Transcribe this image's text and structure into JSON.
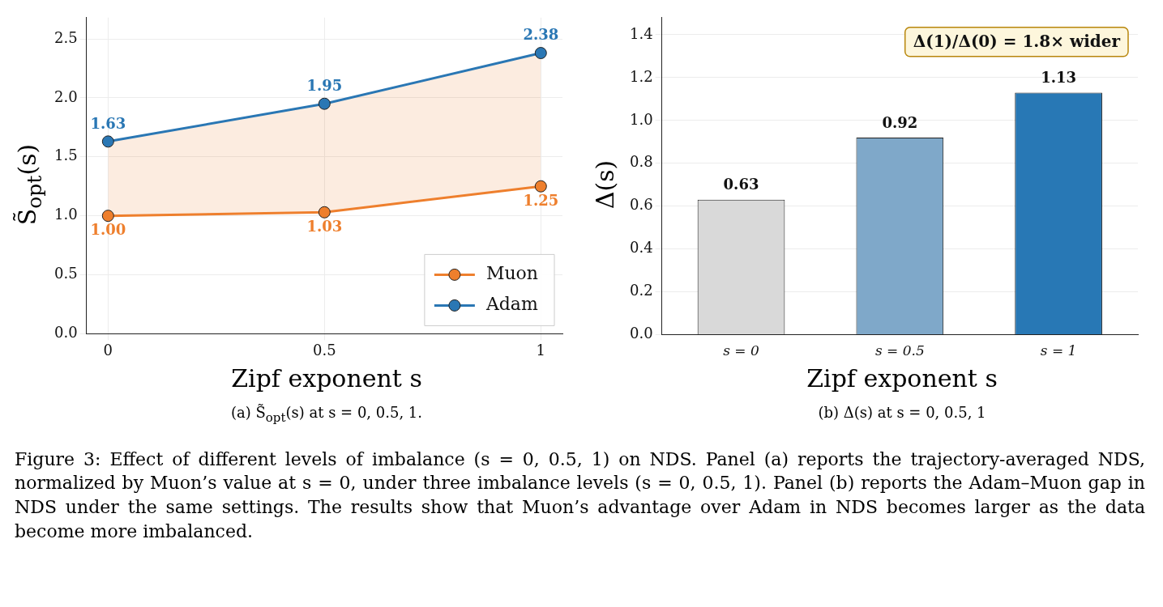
{
  "chart_data": [
    {
      "type": "line",
      "x": [
        0,
        0.5,
        1
      ],
      "xlim": [
        -0.05,
        1.05
      ],
      "xticks": [
        0,
        0.5,
        1
      ],
      "ylim": [
        0,
        2.68
      ],
      "yticks": [
        {
          "value": 0,
          "label": "0.0"
        },
        0.5,
        {
          "value": 1,
          "label": "1.0"
        },
        1.5,
        {
          "value": 2,
          "label": "2.0"
        },
        2.5
      ],
      "xlabel": "Zipf exponent s",
      "ylabel": "S̃$_{opt}$(s)",
      "series": [
        {
          "name": "Muon",
          "color": "#ee7f2d",
          "values": [
            1.0,
            1.03,
            1.25
          ],
          "value_labels": [
            "1.00",
            "1.03",
            "1.25"
          ]
        },
        {
          "name": "Adam",
          "color": "#2a77b4",
          "values": [
            1.63,
            1.95,
            2.38
          ],
          "value_labels": [
            "1.63",
            "1.95",
            "2.38"
          ],
          "lower": [
            1.0,
            1.03,
            1.25
          ],
          "upper": [
            1.63,
            1.95,
            2.38
          ]
        }
      ],
      "marker": "circle",
      "grid": true,
      "legend": "bottom right",
      "annotations": [
        "(a) S̃$_{opt}$(s) at s = 0, 0.5, 1.",
        "Figure 3: Effect of different levels of imbalance (s = 0, 0.5, 1) on NDS. Panel (a) reports the trajectory-averaged NDS, normalized by Muon’s value at s = 0, under three imbalance levels (s = 0, 0.5, 1). Panel (b) reports the Adam–Muon gap in NDS under the same settings. The results show that Muon’s advantage over Adam in NDS becomes larger as the data become more imbalanced."
      ]
    },
    {
      "type": "bar",
      "categories": [
        "s = 0",
        "s = 0.5",
        "s = 1"
      ],
      "values": [
        0.63,
        0.92,
        1.13
      ],
      "colors": [
        "#d9d9d9",
        "#7fa8c9",
        "#2878b5"
      ],
      "ylim": [
        0,
        1.48
      ],
      "yticks": [
        {
          "value": 0,
          "label": "0.0"
        },
        0.2,
        0.4,
        0.6,
        0.8,
        {
          "value": 1,
          "label": "1.0"
        },
        1.2,
        1.4
      ],
      "xlabel": "Zipf exponent s",
      "ylabel": "Δ(s)",
      "data_labels": true,
      "grid": true,
      "annotations": [
        "Δ(1)/Δ(0) = 1.8× wider",
        "(b) Δ(s) at s = 0, 0.5, 1"
      ]
    }
  ]
}
